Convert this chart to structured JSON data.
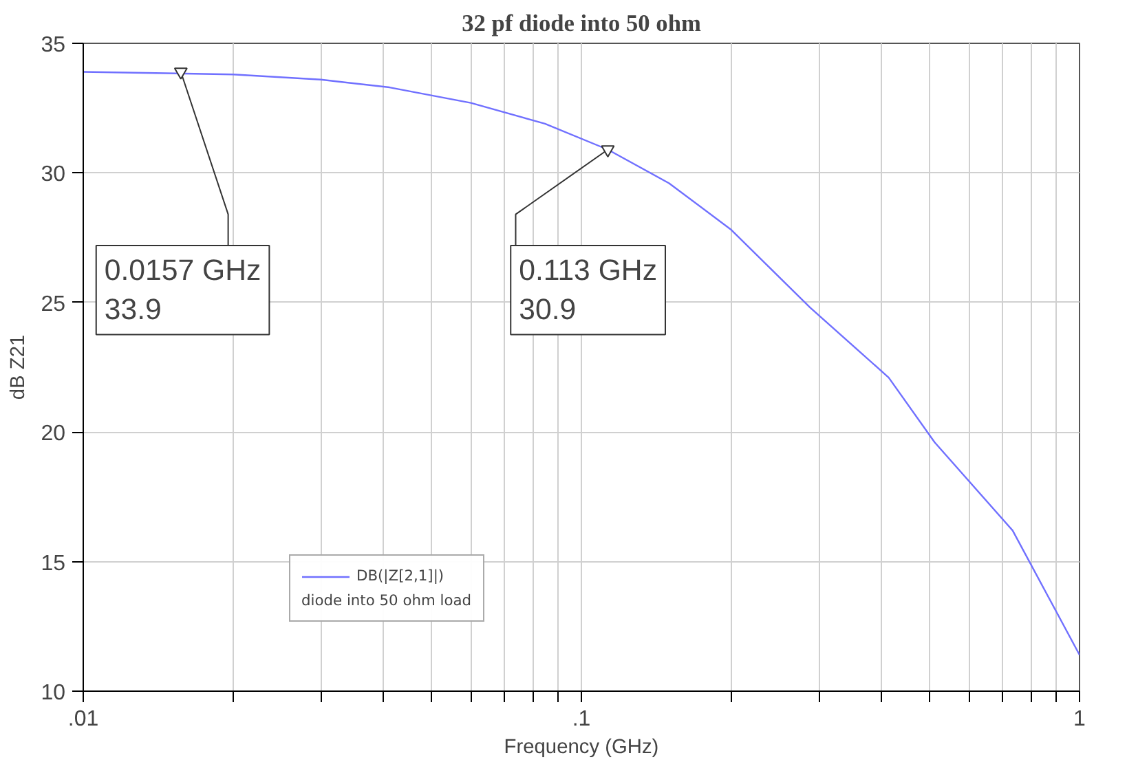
{
  "chart_data": {
    "type": "line",
    "title": "32 pf diode into 50 ohm",
    "xlabel": "Frequency (GHz)",
    "ylabel": "dB Z21",
    "log": "x",
    "xlim": [
      0.01,
      1
    ],
    "ylim": [
      10,
      35
    ],
    "xticks": [
      {
        "value": 0.01,
        "label": ".01"
      },
      {
        "value": 0.02,
        "label": null
      },
      {
        "value": 0.03,
        "label": null
      },
      {
        "value": 0.04,
        "label": null
      },
      {
        "value": 0.05,
        "label": null
      },
      {
        "value": 0.06,
        "label": null
      },
      {
        "value": 0.07,
        "label": null
      },
      {
        "value": 0.08,
        "label": null
      },
      {
        "value": 0.09,
        "label": null
      },
      {
        "value": 0.1,
        "label": ".1"
      },
      {
        "value": 0.2,
        "label": null
      },
      {
        "value": 0.3,
        "label": null
      },
      {
        "value": 0.4,
        "label": null
      },
      {
        "value": 0.5,
        "label": null
      },
      {
        "value": 0.6,
        "label": null
      },
      {
        "value": 0.7,
        "label": null
      },
      {
        "value": 0.8,
        "label": null
      },
      {
        "value": 0.9,
        "label": null
      },
      {
        "value": 1,
        "label": "1"
      }
    ],
    "yticks": [
      10,
      15,
      20,
      25,
      30,
      35
    ],
    "grid": true,
    "legend": "bottom left",
    "legend_title": "diode into 50 ohm load",
    "marker": "none",
    "line_style": "solid",
    "x": [
      0.01,
      0.02,
      0.03,
      0.0412,
      0.06,
      0.0845,
      0.113,
      0.15,
      0.2,
      0.288,
      0.414,
      0.512,
      0.734,
      1
    ],
    "series": [
      {
        "name": "DB(|Z[2,1]|)",
        "color": "#7070ff",
        "values": [
          33.9,
          33.8,
          33.6,
          33.3,
          32.7,
          31.9,
          30.9,
          29.6,
          27.8,
          24.8,
          22.1,
          19.6,
          16.2,
          11.4
        ]
      }
    ],
    "annotations": [
      {
        "text": "0.0157 GHz\n  33.9",
        "x": 0.0157,
        "y": 33.9
      },
      {
        "text": "0.113 GHz\n  30.9",
        "x": 0.113,
        "y": 30.9
      }
    ]
  }
}
